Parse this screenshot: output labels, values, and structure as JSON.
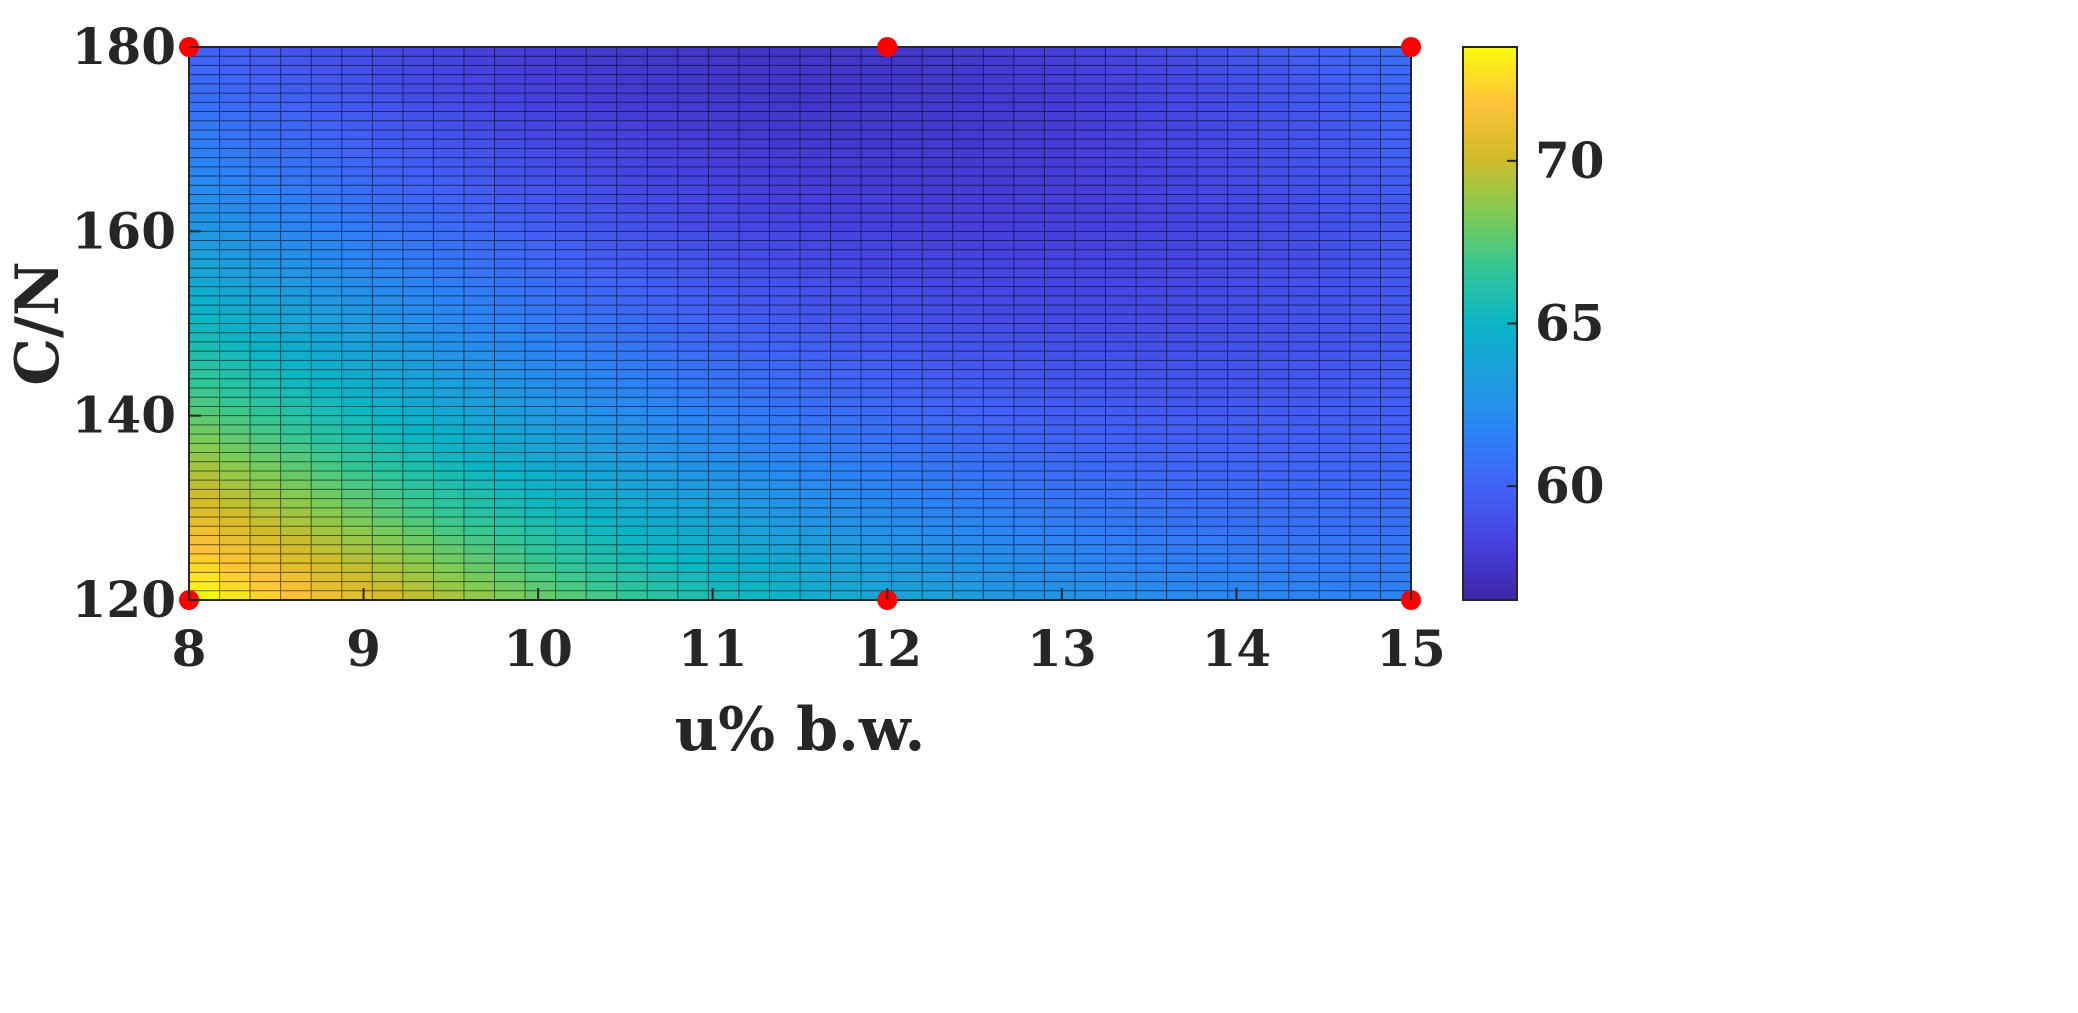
{
  "chart_data": {
    "type": "heatmap",
    "title": "",
    "xlabel": "u% b.w.",
    "ylabel": "C/N",
    "xlim": [
      8,
      15
    ],
    "ylim": [
      120,
      180
    ],
    "x_ticks": [
      "8",
      "9",
      "10",
      "11",
      "12",
      "13",
      "14",
      "15"
    ],
    "y_ticks": [
      "120",
      "140",
      "160",
      "180"
    ],
    "x_tick_values": [
      8,
      9,
      10,
      11,
      12,
      13,
      14,
      15
    ],
    "y_tick_values": [
      120,
      140,
      160,
      180
    ],
    "colorbar": {
      "range": [
        56.5,
        73.5
      ],
      "ticks": [
        "60",
        "65",
        "70"
      ],
      "tick_values": [
        60,
        65,
        70
      ],
      "colormap": "parula"
    },
    "grid_resolution": {
      "nx": 40,
      "ny": 60
    },
    "surface_samples": [
      {
        "x": 8,
        "y": 120,
        "value": 73.5
      },
      {
        "x": 8,
        "y": 150,
        "value": 65.0
      },
      {
        "x": 8,
        "y": 180,
        "value": 60.5
      },
      {
        "x": 9,
        "y": 120,
        "value": 71.0
      },
      {
        "x": 10,
        "y": 130,
        "value": 66.0
      },
      {
        "x": 11,
        "y": 180,
        "value": 57.0
      },
      {
        "x": 12,
        "y": 120,
        "value": 64.0
      },
      {
        "x": 12,
        "y": 180,
        "value": 57.5
      },
      {
        "x": 15,
        "y": 120,
        "value": 61.5
      },
      {
        "x": 15,
        "y": 180,
        "value": 61.0
      }
    ],
    "design_points": [
      {
        "x": 8,
        "y": 120
      },
      {
        "x": 8,
        "y": 180
      },
      {
        "x": 12,
        "y": 120
      },
      {
        "x": 12,
        "y": 180
      },
      {
        "x": 15,
        "y": 120
      },
      {
        "x": 15,
        "y": 180
      }
    ],
    "colors": {
      "design_point": "#ff0000",
      "axis": "#262626",
      "mesh_line": "#000000"
    }
  }
}
